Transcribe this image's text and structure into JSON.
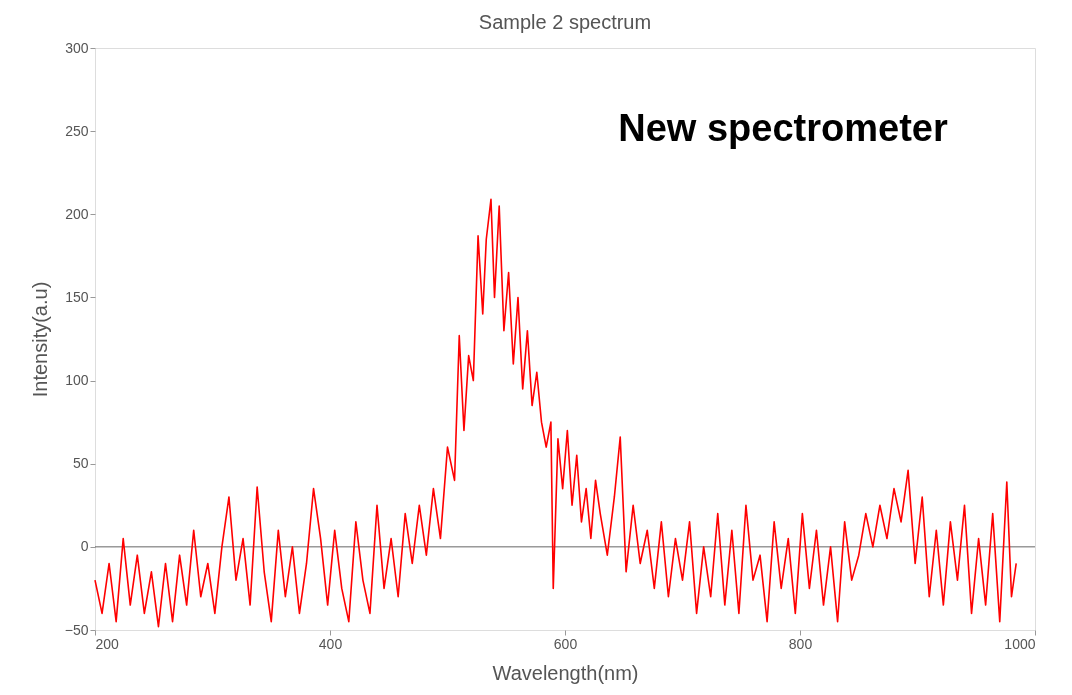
{
  "chart_data": {
    "type": "line",
    "title": "Sample 2 spectrum",
    "xlabel": "Wavelength(nm)",
    "ylabel": "Intensity(a.u)",
    "annotations": [
      "New spectrometer"
    ],
    "x": [
      200,
      206,
      212,
      218,
      224,
      230,
      236,
      242,
      248,
      254,
      260,
      266,
      272,
      278,
      284,
      290,
      296,
      302,
      308,
      314,
      320,
      326,
      332,
      338,
      344,
      350,
      356,
      362,
      368,
      374,
      380,
      386,
      392,
      398,
      404,
      410,
      416,
      422,
      428,
      434,
      440,
      446,
      452,
      458,
      464,
      470,
      476,
      482,
      488,
      494,
      500,
      506,
      510,
      514,
      518,
      522,
      526,
      530,
      533,
      537,
      540,
      544,
      548,
      552,
      556,
      560,
      564,
      568,
      572,
      576,
      580,
      584,
      588,
      590,
      594,
      598,
      602,
      606,
      610,
      614,
      618,
      622,
      626,
      630,
      636,
      642,
      647,
      652,
      658,
      664,
      670,
      676,
      682,
      688,
      694,
      700,
      706,
      712,
      718,
      724,
      730,
      736,
      742,
      748,
      754,
      760,
      766,
      772,
      778,
      784,
      790,
      796,
      802,
      808,
      814,
      820,
      826,
      832,
      838,
      844,
      850,
      856,
      862,
      868,
      874,
      880,
      886,
      892,
      898,
      904,
      910,
      916,
      922,
      928,
      934,
      940,
      946,
      952,
      958,
      964,
      970,
      976,
      980,
      984
    ],
    "series": [
      {
        "color": "#ff0000",
        "values": [
          -20,
          -40,
          -10,
          -45,
          5,
          -35,
          -5,
          -40,
          -15,
          -48,
          -10,
          -45,
          -5,
          -35,
          10,
          -30,
          -10,
          -40,
          0,
          30,
          -20,
          5,
          -35,
          36,
          -15,
          -45,
          10,
          -30,
          0,
          -40,
          -10,
          35,
          5,
          -35,
          10,
          -25,
          -45,
          15,
          -20,
          -40,
          25,
          -25,
          5,
          -30,
          20,
          -10,
          25,
          -5,
          35,
          5,
          60,
          40,
          127,
          70,
          115,
          100,
          187,
          140,
          185,
          209,
          150,
          205,
          130,
          165,
          110,
          150,
          95,
          130,
          85,
          105,
          75,
          60,
          75,
          -25,
          65,
          35,
          70,
          25,
          55,
          15,
          35,
          5,
          40,
          20,
          -5,
          30,
          66,
          -15,
          25,
          -10,
          10,
          -25,
          15,
          -30,
          5,
          -20,
          15,
          -40,
          0,
          -30,
          20,
          -35,
          10,
          -40,
          25,
          -20,
          -5,
          -45,
          15,
          -25,
          5,
          -40,
          20,
          -25,
          10,
          -35,
          0,
          -45,
          15,
          -20,
          -5,
          20,
          0,
          25,
          5,
          35,
          15,
          46,
          -10,
          30,
          -30,
          10,
          -35,
          15,
          -20,
          25,
          -40,
          5,
          -35,
          20,
          -45,
          39,
          -30,
          -10
        ]
      }
    ],
    "xlim": [
      200,
      1000
    ],
    "ylim": [
      -50,
      300
    ],
    "xticks": [
      200,
      400,
      600,
      800,
      1000
    ],
    "yticks": [
      -50,
      0,
      50,
      100,
      150,
      200,
      250,
      300
    ],
    "ref_lines": [
      {
        "axis": "y",
        "value": 0,
        "color": "#666666"
      }
    ],
    "grid": false,
    "marker": "none",
    "line_style": "solid"
  }
}
